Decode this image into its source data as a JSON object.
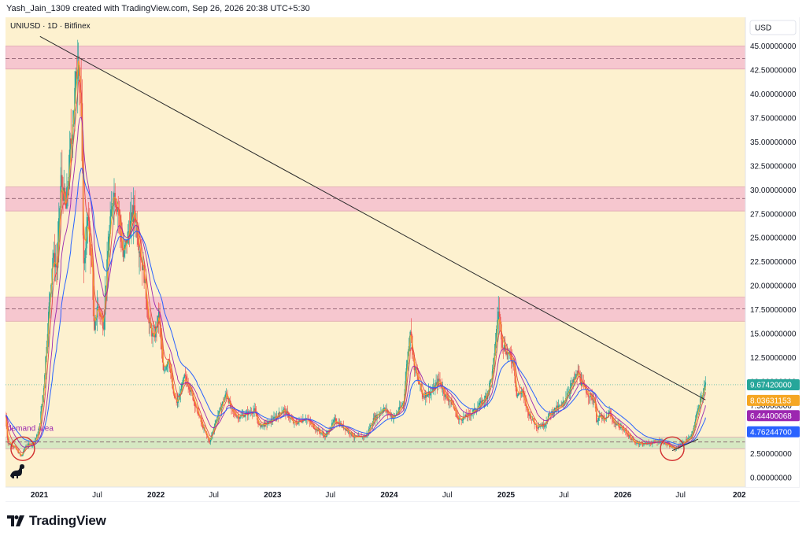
{
  "header": {
    "text": "Yash_Jain_1309 created with TradingView.com, Sep 26, 2026 20:38 UTC+5:30"
  },
  "brand": {
    "name": "TradingView",
    "icon": "tradingview-logo-icon"
  },
  "toolbar": {
    "currency_label": "USD"
  },
  "chart_data": {
    "type": "candlestick",
    "title": "UNIUSD · 1D · Bitfinex",
    "currency": "USD",
    "ylim": [
      -1,
      48
    ],
    "y_ticks": [
      {
        "value": 0,
        "label": "0.00000000"
      },
      {
        "value": 2.5,
        "label": "2.50000000"
      },
      {
        "value": 5,
        "label": "5.00000000"
      },
      {
        "value": 7.5,
        "label": "7.50000000"
      },
      {
        "value": 10,
        "label": "10.00000000"
      },
      {
        "value": 12.5,
        "label": "12.50000000"
      },
      {
        "value": 15,
        "label": "15.00000000"
      },
      {
        "value": 17.5,
        "label": "17.50000000"
      },
      {
        "value": 20,
        "label": "20.00000000"
      },
      {
        "value": 22.5,
        "label": "22.50000000"
      },
      {
        "value": 25,
        "label": "25.00000000"
      },
      {
        "value": 27.5,
        "label": "27.50000000"
      },
      {
        "value": 30,
        "label": "30.00000000"
      },
      {
        "value": 32.5,
        "label": "32.50000000"
      },
      {
        "value": 35,
        "label": "35.00000000"
      },
      {
        "value": 37.5,
        "label": "37.50000000"
      },
      {
        "value": 40,
        "label": "40.00000000"
      },
      {
        "value": 42.5,
        "label": "42.50000000"
      },
      {
        "value": 45,
        "label": "45.00000000"
      }
    ],
    "x_range": [
      "2020-09-17",
      "2027-01-20"
    ],
    "x_ticks": [
      {
        "date": "2021-01-01",
        "label": "2021",
        "major": true
      },
      {
        "date": "2021-07-01",
        "label": "Jul",
        "major": false
      },
      {
        "date": "2022-01-01",
        "label": "2022",
        "major": true
      },
      {
        "date": "2022-07-01",
        "label": "Jul",
        "major": false
      },
      {
        "date": "2023-01-01",
        "label": "2023",
        "major": true
      },
      {
        "date": "2023-07-01",
        "label": "Jul",
        "major": false
      },
      {
        "date": "2024-01-01",
        "label": "2024",
        "major": true
      },
      {
        "date": "2024-07-01",
        "label": "Jul",
        "major": false
      },
      {
        "date": "2025-01-01",
        "label": "2025",
        "major": true
      },
      {
        "date": "2025-07-01",
        "label": "Jul",
        "major": false
      },
      {
        "date": "2026-01-01",
        "label": "2026",
        "major": true
      },
      {
        "date": "2026-07-01",
        "label": "Jul",
        "major": false
      },
      {
        "date": "2027-01-01",
        "label": "202",
        "major": true
      }
    ],
    "zones": [
      {
        "name": "resistance-zone-top",
        "y_low": 42.6,
        "y_high": 45.0,
        "mid": 43.7,
        "color": "#f4bfcf"
      },
      {
        "name": "resistance-zone-mid",
        "y_low": 27.8,
        "y_high": 30.3,
        "mid": 29.1,
        "color": "#f4bfcf"
      },
      {
        "name": "resistance-zone-low",
        "y_low": 16.3,
        "y_high": 18.8,
        "mid": 17.6,
        "color": "#f4bfcf"
      },
      {
        "name": "demand-zone",
        "y_low": 3.0,
        "y_high": 4.2,
        "mid": 3.7,
        "color": "#cfe6bf"
      }
    ],
    "demand_label": "demand area",
    "trendline": {
      "from": {
        "date": "2021-01-03",
        "value": 46.0
      },
      "to": {
        "date": "2026-09-17",
        "value": 8.1
      }
    },
    "support_line": {
      "from": {
        "date": "2026-06-05",
        "value": 2.8
      },
      "to": {
        "date": "2026-08-25",
        "value": 4.0
      }
    },
    "circles": [
      {
        "date": "2020-11-10",
        "value": 3.0
      },
      {
        "date": "2026-06-05",
        "value": 3.0
      }
    ],
    "price_levels": [
      {
        "label": "9.67420000",
        "value": 9.6742,
        "color": "#26a69a"
      },
      {
        "label": "8.03631153",
        "value": 8.03631153,
        "color": "#f5a623"
      },
      {
        "label": "6.44400068",
        "value": 6.44400068,
        "color": "#9c27b0"
      },
      {
        "label": "4.76244700",
        "value": 4.762447,
        "color": "#2962ff"
      }
    ],
    "price_anchors": [
      [
        "2020-09-17",
        6.5
      ],
      [
        "2020-09-25",
        3.6
      ],
      [
        "2020-10-15",
        3.2
      ],
      [
        "2020-11-05",
        2.2
      ],
      [
        "2020-11-20",
        3.3
      ],
      [
        "2020-12-15",
        3.6
      ],
      [
        "2020-12-31",
        4.9
      ],
      [
        "2021-01-15",
        9.5
      ],
      [
        "2021-02-01",
        18.0
      ],
      [
        "2021-02-12",
        23.0
      ],
      [
        "2021-02-25",
        22.0
      ],
      [
        "2021-03-10",
        31.0
      ],
      [
        "2021-03-25",
        28.0
      ],
      [
        "2021-04-10",
        35.0
      ],
      [
        "2021-05-03",
        44.5
      ],
      [
        "2021-05-12",
        38.0
      ],
      [
        "2021-05-20",
        22.0
      ],
      [
        "2021-06-01",
        27.0
      ],
      [
        "2021-06-15",
        22.0
      ],
      [
        "2021-06-22",
        15.0
      ],
      [
        "2021-07-01",
        18.0
      ],
      [
        "2021-07-20",
        16.0
      ],
      [
        "2021-08-05",
        24.0
      ],
      [
        "2021-08-20",
        30.0
      ],
      [
        "2021-09-05",
        28.0
      ],
      [
        "2021-09-20",
        23.0
      ],
      [
        "2021-10-10",
        26.0
      ],
      [
        "2021-10-25",
        28.0
      ],
      [
        "2021-11-10",
        24.0
      ],
      [
        "2021-11-25",
        21.0
      ],
      [
        "2021-12-10",
        16.0
      ],
      [
        "2021-12-25",
        14.5
      ],
      [
        "2022-01-10",
        17.0
      ],
      [
        "2022-01-24",
        11.0
      ],
      [
        "2022-02-10",
        12.5
      ],
      [
        "2022-02-25",
        8.5
      ],
      [
        "2022-03-10",
        7.8
      ],
      [
        "2022-03-31",
        10.5
      ],
      [
        "2022-04-15",
        9.5
      ],
      [
        "2022-05-10",
        7.0
      ],
      [
        "2022-05-25",
        5.5
      ],
      [
        "2022-06-18",
        3.7
      ],
      [
        "2022-07-05",
        5.6
      ],
      [
        "2022-07-25",
        7.5
      ],
      [
        "2022-08-10",
        8.8
      ],
      [
        "2022-08-25",
        7.0
      ],
      [
        "2022-09-15",
        6.3
      ],
      [
        "2022-10-15",
        6.7
      ],
      [
        "2022-11-05",
        7.0
      ],
      [
        "2022-11-20",
        5.4
      ],
      [
        "2022-12-15",
        5.6
      ],
      [
        "2023-01-15",
        6.4
      ],
      [
        "2023-02-05",
        7.1
      ],
      [
        "2023-03-10",
        5.6
      ],
      [
        "2023-04-15",
        6.2
      ],
      [
        "2023-05-15",
        5.1
      ],
      [
        "2023-06-15",
        4.3
      ],
      [
        "2023-07-15",
        6.0
      ],
      [
        "2023-08-20",
        5.0
      ],
      [
        "2023-09-15",
        4.2
      ],
      [
        "2023-10-20",
        4.3
      ],
      [
        "2023-11-15",
        6.2
      ],
      [
        "2023-12-15",
        7.2
      ],
      [
        "2024-01-15",
        6.2
      ],
      [
        "2024-02-15",
        7.8
      ],
      [
        "2024-02-26",
        12.0
      ],
      [
        "2024-03-07",
        15.5
      ],
      [
        "2024-03-20",
        11.5
      ],
      [
        "2024-04-15",
        8.5
      ],
      [
        "2024-05-15",
        9.0
      ],
      [
        "2024-06-05",
        10.2
      ],
      [
        "2024-06-25",
        8.5
      ],
      [
        "2024-07-15",
        7.8
      ],
      [
        "2024-08-05",
        6.0
      ],
      [
        "2024-09-05",
        6.5
      ],
      [
        "2024-10-01",
        7.2
      ],
      [
        "2024-11-01",
        8.5
      ],
      [
        "2024-11-20",
        11.0
      ],
      [
        "2024-12-08",
        17.5
      ],
      [
        "2024-12-20",
        14.0
      ],
      [
        "2025-01-05",
        13.0
      ],
      [
        "2025-01-25",
        12.0
      ],
      [
        "2025-02-03",
        8.5
      ],
      [
        "2025-02-20",
        9.0
      ],
      [
        "2025-03-10",
        6.8
      ],
      [
        "2025-04-07",
        5.3
      ],
      [
        "2025-05-01",
        5.5
      ],
      [
        "2025-05-15",
        6.5
      ],
      [
        "2025-06-05",
        7.2
      ],
      [
        "2025-06-25",
        7.5
      ],
      [
        "2025-07-15",
        9.0
      ],
      [
        "2025-08-15",
        11.0
      ],
      [
        "2025-08-25",
        9.8
      ],
      [
        "2025-09-15",
        8.7
      ],
      [
        "2025-10-05",
        8.0
      ],
      [
        "2025-10-11",
        6.0
      ],
      [
        "2025-10-25",
        6.4
      ],
      [
        "2025-11-05",
        5.9
      ],
      [
        "2025-11-20",
        6.8
      ],
      [
        "2025-12-05",
        5.7
      ],
      [
        "2025-12-20",
        5.4
      ],
      [
        "2026-01-10",
        4.8
      ],
      [
        "2026-02-05",
        3.7
      ],
      [
        "2026-03-05",
        3.5
      ],
      [
        "2026-04-01",
        3.6
      ],
      [
        "2026-05-01",
        3.8
      ],
      [
        "2026-06-01",
        3.2
      ],
      [
        "2026-06-15",
        3.0
      ],
      [
        "2026-07-01",
        3.4
      ],
      [
        "2026-07-20",
        3.9
      ],
      [
        "2026-08-05",
        4.3
      ],
      [
        "2026-08-20",
        6.5
      ],
      [
        "2026-09-01",
        8.2
      ],
      [
        "2026-09-10",
        9.0
      ],
      [
        "2026-09-17",
        9.67
      ]
    ],
    "ema_periods": [
      10,
      20,
      50,
      100
    ]
  }
}
